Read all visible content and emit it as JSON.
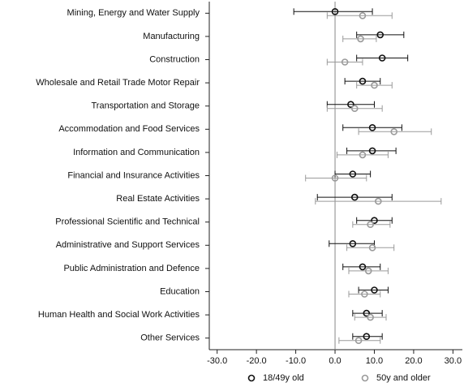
{
  "chart_data": {
    "type": "errorbar",
    "categories": [
      "Mining, Energy and Water Supply",
      "Manufacturing",
      "Construction",
      "Wholesale and Retail Trade Motor Repair",
      "Transportation and Storage",
      "Accommodation and Food Services",
      "Information and Communication",
      "Financial and Insurance Activities",
      "Real Estate Activities",
      "Professional Scientific and Technical",
      "Administrative and Support Services",
      "Public Administration and Defence",
      "Education",
      "Human Health and Social Work Activities",
      "Other Services"
    ],
    "series": [
      {
        "name": "18/49y old",
        "color": "#111111",
        "values": [
          0,
          11.5,
          12,
          7,
          4,
          9.5,
          9.5,
          4.5,
          5,
          10,
          4.5,
          7,
          10,
          8,
          8
        ],
        "lower": [
          -10.5,
          5.5,
          5.5,
          2.5,
          -2,
          2,
          3,
          0,
          -4.5,
          5.5,
          -1.5,
          2,
          6,
          4.5,
          4.5
        ],
        "upper": [
          9.5,
          17.5,
          18.5,
          11.5,
          10,
          17,
          15.5,
          9,
          14.5,
          14.5,
          10,
          11.5,
          13.5,
          12,
          12
        ]
      },
      {
        "name": "50y and older",
        "color": "#9a9a9a",
        "values": [
          7,
          6.5,
          2.5,
          10,
          5,
          15,
          7,
          0,
          11,
          9,
          9.5,
          8.5,
          7.5,
          9,
          6
        ],
        "lower": [
          -2,
          2,
          -2,
          5.5,
          -2,
          6,
          0.5,
          -7.5,
          -5,
          4.5,
          3,
          3.5,
          3.5,
          5,
          1
        ],
        "upper": [
          14.5,
          10.5,
          7,
          14.5,
          12,
          24.5,
          13.5,
          8,
          27,
          14,
          15,
          13.5,
          11.5,
          13,
          11.5
        ]
      }
    ],
    "xlim": [
      -32,
      32.4
    ],
    "xticks": [
      {
        "value": -30,
        "label": "-30.0"
      },
      {
        "value": -20,
        "label": "-20.0"
      },
      {
        "value": -10,
        "label": "-10.0"
      },
      {
        "value": 0,
        "label": "0.0"
      },
      {
        "value": 10,
        "label": "10.0"
      },
      {
        "value": 20,
        "label": "20.0"
      },
      {
        "value": 30,
        "label": "30.0"
      }
    ],
    "reference_line": 0,
    "legend": "bottom"
  }
}
